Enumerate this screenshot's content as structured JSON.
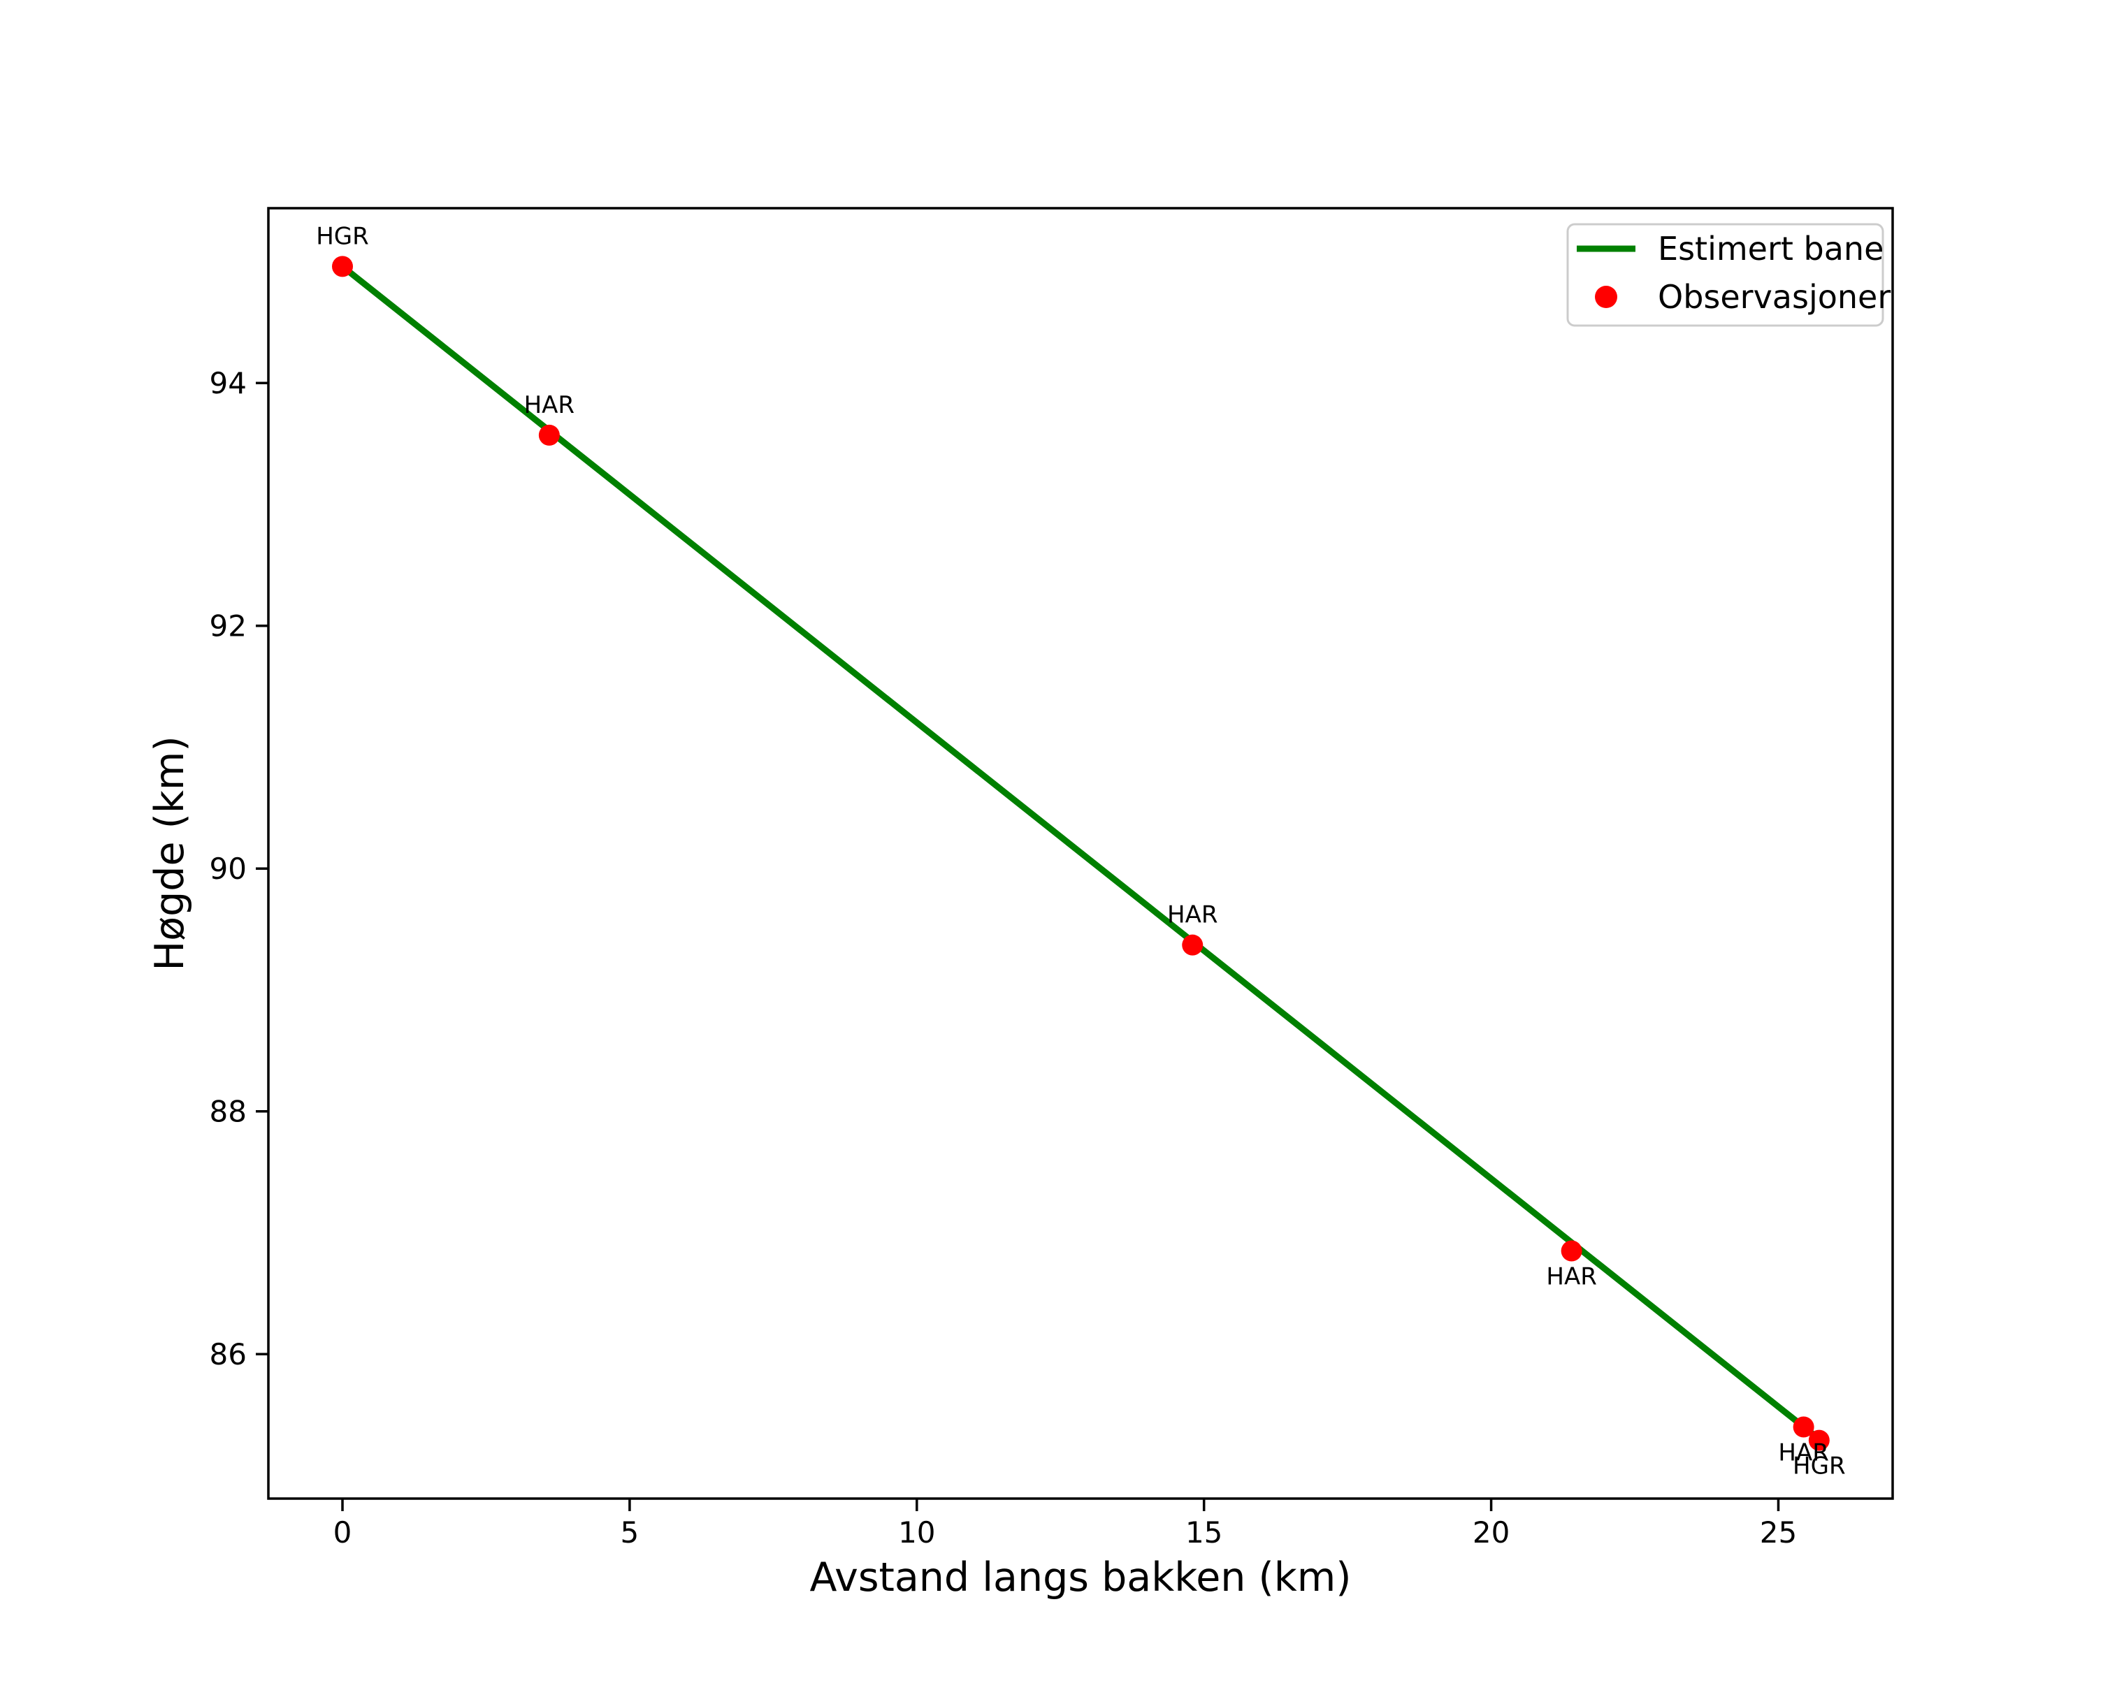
{
  "chart_data": {
    "type": "scatter",
    "title": "",
    "xlabel": "Avstand langs bakken (km)",
    "ylabel": "Høgde (km)",
    "xlim": [
      -1.29,
      26.99
    ],
    "ylim": [
      84.81,
      95.44
    ],
    "xticks": [
      0,
      5,
      10,
      15,
      20,
      25
    ],
    "yticks": [
      86,
      88,
      90,
      92,
      94
    ],
    "grid": false,
    "colors": {
      "line": "#008000",
      "marker": "#ff0000",
      "axis": "#000000",
      "legend_border": "#cccccc"
    },
    "legend": {
      "position": "upper-right",
      "entries": [
        {
          "label": "Estimert bane",
          "marker": "line",
          "color": "#008000"
        },
        {
          "label": "Observasjoner",
          "marker": "dot",
          "color": "#ff0000"
        }
      ]
    },
    "series": [
      {
        "name": "Estimert bane",
        "type": "line",
        "color": "#008000",
        "x": [
          0.0,
          25.71
        ],
        "y": [
          94.96,
          85.3
        ]
      },
      {
        "name": "Observasjoner",
        "type": "scatter",
        "color": "#ff0000",
        "points": [
          {
            "x": 0.0,
            "y": 94.96,
            "label": "HGR",
            "label_pos": "above"
          },
          {
            "x": 3.6,
            "y": 93.57,
            "label": "HAR",
            "label_pos": "above"
          },
          {
            "x": 14.8,
            "y": 89.37,
            "label": "HAR",
            "label_pos": "above"
          },
          {
            "x": 21.4,
            "y": 86.85,
            "label": "HAR",
            "label_pos": "below"
          },
          {
            "x": 25.44,
            "y": 85.4,
            "label": "HAR",
            "label_pos": "below"
          },
          {
            "x": 25.71,
            "y": 85.29,
            "label": "HGR",
            "label_pos": "below"
          }
        ]
      }
    ]
  }
}
